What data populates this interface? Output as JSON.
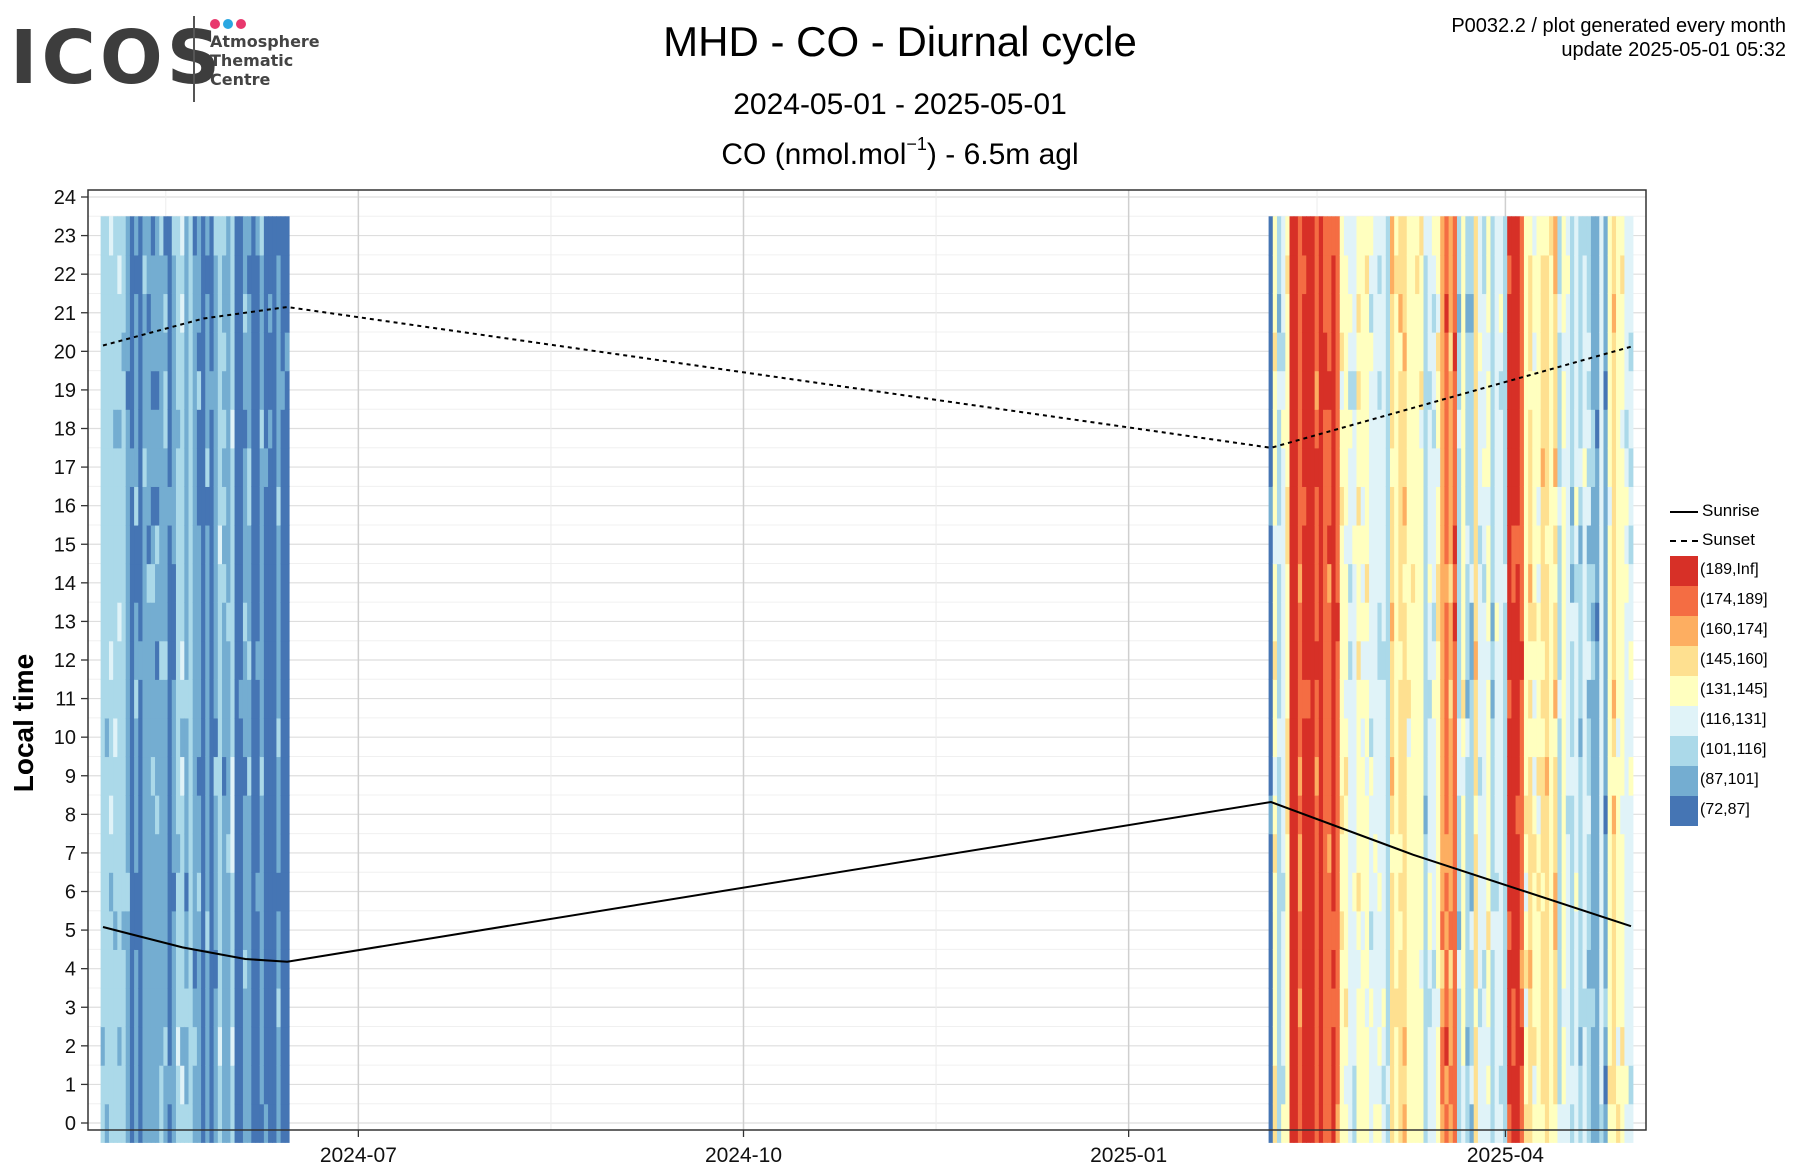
{
  "logo": {
    "wordmark": "ICOS",
    "subtitle_lines": [
      "Atmosphere",
      "Thematic",
      "Centre"
    ],
    "dot_colors": [
      "#e8386d",
      "#2aa7e1",
      "#e8386d"
    ]
  },
  "header": {
    "title": "MHD - CO - Diurnal cycle",
    "date_range": "2024-05-01 - 2025-05-01",
    "unit_prefix": "CO (nmol.mol",
    "unit_exp": "−1",
    "unit_suffix": ") - 6.5m agl",
    "corner_line1": "P0032.2 / plot generated every month",
    "corner_line2": "update  2025-05-01 05:32"
  },
  "chart_data": {
    "type": "heatmap",
    "x_axis": {
      "type": "date",
      "range": [
        "2024-05-01",
        "2025-05-01"
      ],
      "ticks": [
        "2024-07",
        "2024-10",
        "2025-01",
        "2025-04"
      ]
    },
    "y_axis": {
      "label": "Local time",
      "range": [
        0,
        24
      ],
      "ticks": [
        0,
        1,
        2,
        3,
        4,
        5,
        6,
        7,
        8,
        9,
        10,
        11,
        12,
        13,
        14,
        15,
        16,
        17,
        18,
        19,
        20,
        21,
        22,
        23,
        24
      ]
    },
    "grid": true,
    "legend_position": "right",
    "bins": [
      {
        "label": "(189,Inf]",
        "color": "#d73027"
      },
      {
        "label": "(174,189]",
        "color": "#f46d43"
      },
      {
        "label": "(160,174]",
        "color": "#fdae61"
      },
      {
        "label": "(145,160]",
        "color": "#fee090"
      },
      {
        "label": "(131,145]",
        "color": "#ffffbf"
      },
      {
        "label": "(116,131]",
        "color": "#e0f3f8"
      },
      {
        "label": "(101,116]",
        "color": "#abd9e9"
      },
      {
        "label": "(87,101]",
        "color": "#74add1"
      },
      {
        "label": "(72,87]",
        "color": "#4575b4"
      }
    ],
    "data_gap": [
      "2024-06-14",
      "2025-02-04"
    ],
    "daily_dominant_bin": [
      {
        "date": "2024-05-01",
        "bin": "(101,116]"
      },
      {
        "date": "2024-05-05",
        "bin": "(101,116]"
      },
      {
        "date": "2024-05-08",
        "bin": "(87,101]"
      },
      {
        "date": "2024-05-11",
        "bin": "(101,116]"
      },
      {
        "date": "2024-05-14",
        "bin": "(87,101]"
      },
      {
        "date": "2024-05-17",
        "bin": "(87,101]"
      },
      {
        "date": "2024-05-21",
        "bin": "(87,101]"
      },
      {
        "date": "2024-05-25",
        "bin": "(87,101]"
      },
      {
        "date": "2024-05-29",
        "bin": "(87,101]"
      },
      {
        "date": "2024-06-02",
        "bin": "(72,87]"
      },
      {
        "date": "2024-06-06",
        "bin": "(72,87]"
      },
      {
        "date": "2024-06-10",
        "bin": "(72,87]"
      },
      {
        "date": "2025-02-05",
        "bin": "(116,131]"
      },
      {
        "date": "2025-02-09",
        "bin": "(189,Inf]"
      },
      {
        "date": "2025-02-13",
        "bin": "(189,Inf]"
      },
      {
        "date": "2025-02-17",
        "bin": "(174,189]"
      },
      {
        "date": "2025-02-21",
        "bin": "(116,131]"
      },
      {
        "date": "2025-02-25",
        "bin": "(131,145]"
      },
      {
        "date": "2025-03-01",
        "bin": "(116,131]"
      },
      {
        "date": "2025-03-05",
        "bin": "(145,160]"
      },
      {
        "date": "2025-03-09",
        "bin": "(131,145]"
      },
      {
        "date": "2025-03-13",
        "bin": "(116,131]"
      },
      {
        "date": "2025-03-17",
        "bin": "(174,189]"
      },
      {
        "date": "2025-03-21",
        "bin": "(116,131]"
      },
      {
        "date": "2025-03-25",
        "bin": "(131,145]"
      },
      {
        "date": "2025-03-29",
        "bin": "(101,116]"
      },
      {
        "date": "2025-04-02",
        "bin": "(189,Inf]"
      },
      {
        "date": "2025-04-06",
        "bin": "(145,160]"
      },
      {
        "date": "2025-04-10",
        "bin": "(131,145]"
      },
      {
        "date": "2025-04-14",
        "bin": "(116,131]"
      },
      {
        "date": "2025-04-18",
        "bin": "(116,131]"
      },
      {
        "date": "2025-04-22",
        "bin": "(101,116]"
      },
      {
        "date": "2025-04-26",
        "bin": "(131,145]"
      }
    ],
    "series": [
      {
        "name": "Sunrise",
        "style": "solid",
        "points": [
          {
            "date": "2024-05-01",
            "hour": 5.08
          },
          {
            "date": "2024-05-20",
            "hour": 4.55
          },
          {
            "date": "2024-06-04",
            "hour": 4.25
          },
          {
            "date": "2024-06-14",
            "hour": 4.18
          },
          {
            "date": "2025-02-04",
            "hour": 8.32
          },
          {
            "date": "2025-03-10",
            "hour": 6.95
          },
          {
            "date": "2025-05-01",
            "hour": 5.1
          }
        ]
      },
      {
        "name": "Sunset",
        "style": "dashed",
        "points": [
          {
            "date": "2024-05-01",
            "hour": 20.15
          },
          {
            "date": "2024-05-25",
            "hour": 20.85
          },
          {
            "date": "2024-06-14",
            "hour": 21.15
          },
          {
            "date": "2025-02-04",
            "hour": 17.5
          },
          {
            "date": "2025-05-01",
            "hour": 20.12
          }
        ]
      }
    ]
  }
}
